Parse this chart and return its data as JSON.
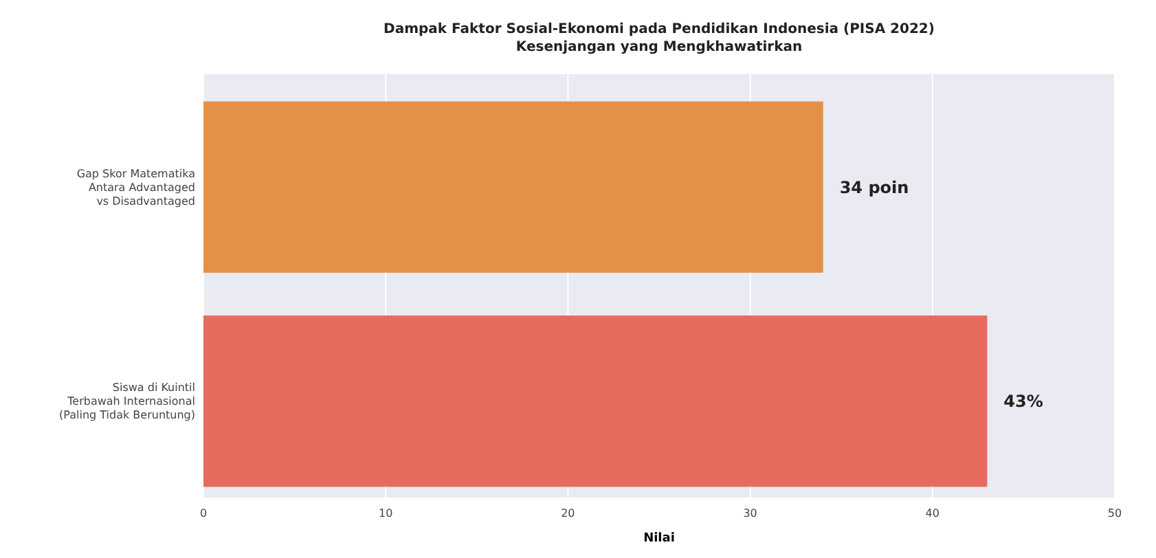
{
  "chart_data": {
    "type": "bar",
    "orientation": "horizontal",
    "title": "Dampak Faktor Sosial-Ekonomi pada Pendidikan Indonesia (PISA 2022)\nKesenjangan yang Mengkhawatirkan",
    "categories": [
      "Gap Skor Matematika\nAntara Advantaged\nvs Disadvantaged",
      "Siswa di Kuintil\nTerbawah Internasional\n(Paling Tidak Beruntung)"
    ],
    "values": [
      34,
      43
    ],
    "colors": [
      "#e39149",
      "#e56b5f"
    ],
    "value_labels": [
      "34 poin",
      "43%"
    ],
    "xlabel": "Nilai",
    "xlim": [
      0,
      50
    ],
    "xticks": [
      0,
      10,
      20,
      30,
      40,
      50
    ],
    "grid": "x"
  }
}
